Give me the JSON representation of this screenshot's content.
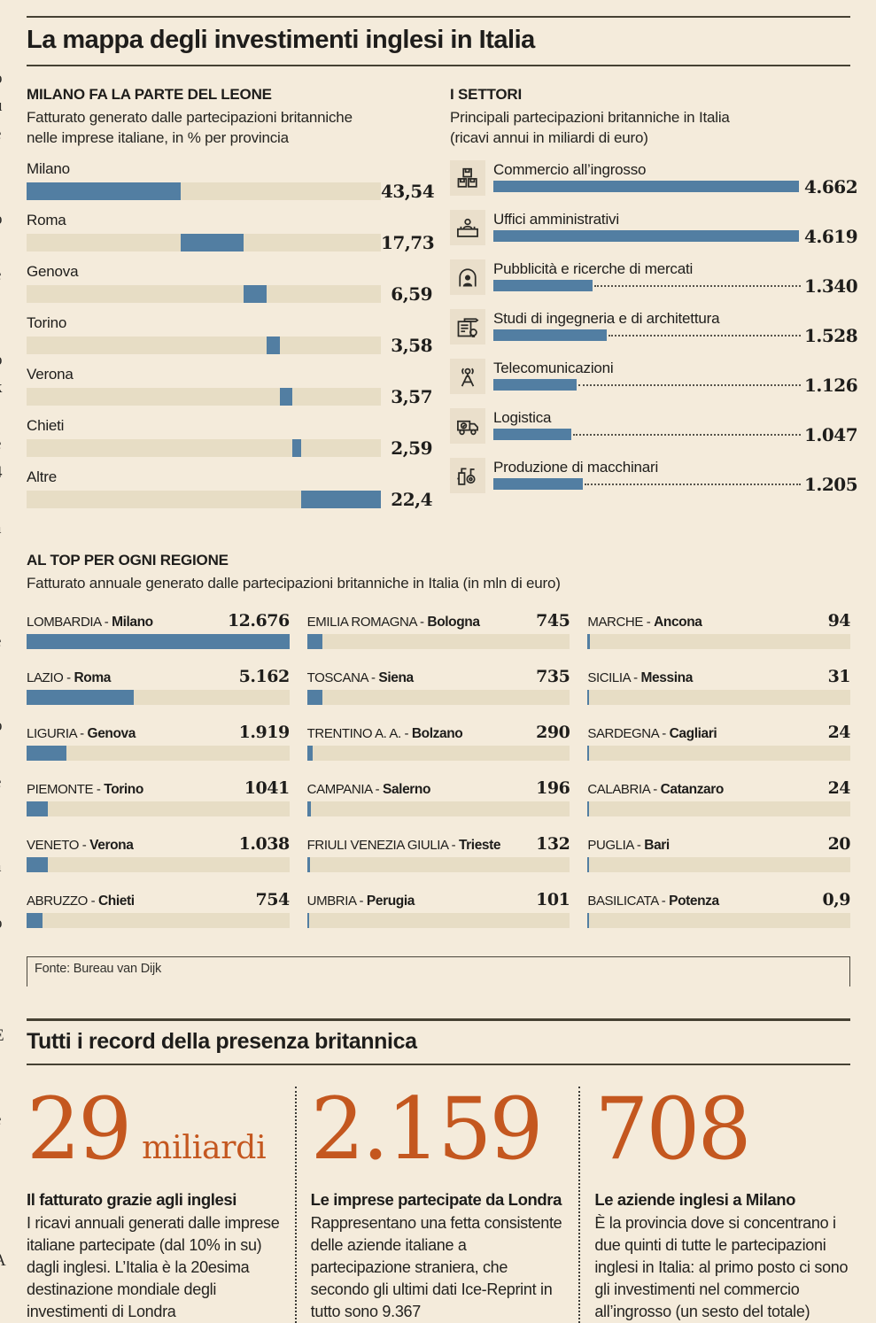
{
  "header": {
    "title": "La mappa degli investimenti inglesi in Italia"
  },
  "colors": {
    "background": "#f4ebdb",
    "bar_blue": "#527ea2",
    "bar_track": "#e7ddc5",
    "accent_orange": "#c4571f",
    "rule_dark": "#464133"
  },
  "margin_fragments": [
    "i",
    "-",
    "o",
    "u",
    "e",
    "-",
    "-",
    "o",
    "-",
    "e",
    ",",
    "i",
    "o",
    "k",
    "-",
    "e",
    "4",
    "-",
    "a",
    "-",
    "r",
    "i",
    "e",
    "-",
    "i",
    "o",
    "-",
    "e",
    "r",
    "-",
    "a",
    "-",
    "o",
    "-",
    "r",
    "-",
    "E",
    "-",
    "-",
    "e",
    "-",
    "-",
    "l",
    "-",
    "A"
  ],
  "province_chart": {
    "heading": "MILANO FA LA PARTE DEL LEONE",
    "subtitle1": "Fatturato generato dalle partecipazioni britanniche",
    "subtitle2": "nelle imprese italiane, in % per provincia",
    "rows": [
      {
        "label": "Milano",
        "display": "43,54",
        "start_pct": 0,
        "width_pct": 43.54
      },
      {
        "label": "Roma",
        "display": "17,73",
        "start_pct": 43.54,
        "width_pct": 17.73
      },
      {
        "label": "Genova",
        "display": "6,59",
        "start_pct": 61.27,
        "width_pct": 6.59
      },
      {
        "label": "Torino",
        "display": "3,58",
        "start_pct": 67.86,
        "width_pct": 3.58
      },
      {
        "label": "Verona",
        "display": "3,57",
        "start_pct": 71.44,
        "width_pct": 3.57
      },
      {
        "label": "Chieti",
        "display": "2,59",
        "start_pct": 75.01,
        "width_pct": 2.59
      },
      {
        "label": "Altre",
        "display": "22,4",
        "start_pct": 77.6,
        "width_pct": 22.4
      }
    ]
  },
  "sectors": {
    "heading": "I SETTORI",
    "subtitle1": "Principali partecipazioni britanniche in Italia",
    "subtitle2": "(ricavi annui in miliardi di euro)",
    "rows": [
      {
        "icon": "boxes-icon",
        "label": "Commercio all’ingrosso",
        "display": "4.662",
        "bar_pct": 97.0
      },
      {
        "icon": "desk-icon",
        "label": "Uffici amministrativi",
        "display": "4.619",
        "bar_pct": 96.1
      },
      {
        "icon": "person-arch-icon",
        "label": "Pubblicità e ricerche di mercati",
        "display": "1.340",
        "bar_pct": 27.9
      },
      {
        "icon": "blueprint-icon",
        "label": "Studi di ingegneria e di architettura",
        "display": "1.528",
        "bar_pct": 31.8
      },
      {
        "icon": "antenna-icon",
        "label": "Telecomunicazioni",
        "display": "1.126",
        "bar_pct": 23.4
      },
      {
        "icon": "truck-icon",
        "label": "Logistica",
        "display": "1.047",
        "bar_pct": 21.8
      },
      {
        "icon": "machinery-icon",
        "label": "Produzione di macchinari",
        "display": "1.205",
        "bar_pct": 25.1
      }
    ]
  },
  "regions": {
    "heading": "AL TOP PER OGNI REGIONE",
    "subtitle": "Fatturato annuale generato dalle partecipazioni britanniche in Italia (in mln di euro)",
    "source": "Fonte: Bureau van Dijk",
    "columns": [
      [
        {
          "region": "LOMBARDIA",
          "city": "Milano",
          "display": "12.676",
          "bar_pct": 100
        },
        {
          "region": "LAZIO",
          "city": "Roma",
          "display": "5.162",
          "bar_pct": 40.7
        },
        {
          "region": "LIGURIA",
          "city": "Genova",
          "display": "1.919",
          "bar_pct": 15.1
        },
        {
          "region": "PIEMONTE",
          "city": "Torino",
          "display": "1041",
          "bar_pct": 8.2
        },
        {
          "region": "VENETO",
          "city": "Verona",
          "display": "1.038",
          "bar_pct": 8.2
        },
        {
          "region": "ABRUZZO",
          "city": "Chieti",
          "display": "754",
          "bar_pct": 5.9
        }
      ],
      [
        {
          "region": "EMILIA ROMAGNA",
          "city": "Bologna",
          "display": "745",
          "bar_pct": 5.9
        },
        {
          "region": "TOSCANA",
          "city": "Siena",
          "display": "735",
          "bar_pct": 5.8
        },
        {
          "region": "TRENTINO A. A.",
          "city": "Bolzano",
          "display": "290",
          "bar_pct": 2.3
        },
        {
          "region": "CAMPANIA",
          "city": "Salerno",
          "display": "196",
          "bar_pct": 1.5
        },
        {
          "region": "FRIULI VENEZIA GIULIA",
          "city": "Trieste",
          "display": "132",
          "bar_pct": 1.0
        },
        {
          "region": "UMBRIA",
          "city": "Perugia",
          "display": "101",
          "bar_pct": 0.8
        }
      ],
      [
        {
          "region": "MARCHE",
          "city": "Ancona",
          "display": "94",
          "bar_pct": 0.8
        },
        {
          "region": "SICILIA",
          "city": "Messina",
          "display": "31",
          "bar_pct": 0.5
        },
        {
          "region": "SARDEGNA",
          "city": "Cagliari",
          "display": "24",
          "bar_pct": 0.4
        },
        {
          "region": "CALABRIA",
          "city": "Catanzaro",
          "display": "24",
          "bar_pct": 0.4
        },
        {
          "region": "PUGLIA",
          "city": "Bari",
          "display": "20",
          "bar_pct": 0.4
        },
        {
          "region": "BASILICATA",
          "city": "Potenza",
          "display": "0,9",
          "bar_pct": 0.3
        }
      ]
    ]
  },
  "records": {
    "heading": "Tutti i record della presenza britannica",
    "items": [
      {
        "number": "29",
        "suffix": "miliardi",
        "title": "Il fatturato grazie agli inglesi",
        "body": "I ricavi annuali generati dalle imprese italiane partecipate (dal 10% in su) dagli inglesi. L’Italia è la 20esima destinazione mondiale degli investimenti di Londra"
      },
      {
        "number": "2.159",
        "suffix": "",
        "title": "Le imprese partecipate da Londra",
        "body": "Rappresentano una fetta consistente delle aziende italiane a partecipazione straniera, che secondo gli ultimi dati Ice-Reprint in tutto sono 9.367"
      },
      {
        "number": "708",
        "suffix": "",
        "title": "Le aziende inglesi a Milano",
        "body": "È la provincia dove si concentrano i due quinti di tutte le partecipazioni inglesi in Italia: al primo posto ci sono gli investimenti nel commercio all’ingrosso (un sesto del totale)"
      }
    ]
  },
  "chart_data": [
    {
      "type": "bar",
      "variant": "waterfall",
      "title": "MILANO FA LA PARTE DEL LEONE",
      "subtitle": "Fatturato generato dalle partecipazioni britanniche nelle imprese italiane, in % per provincia",
      "categories": [
        "Milano",
        "Roma",
        "Genova",
        "Torino",
        "Verona",
        "Chieti",
        "Altre"
      ],
      "values": [
        43.54,
        17.73,
        6.59,
        3.58,
        3.57,
        2.59,
        22.4
      ],
      "unit": "%",
      "xlim": [
        0,
        100
      ],
      "notes": "segments placed cumulatively along a full-width beige track"
    },
    {
      "type": "bar",
      "title": "I SETTORI",
      "subtitle": "Principali partecipazioni britanniche in Italia (ricavi annui in miliardi di euro)",
      "categories": [
        "Commercio all’ingrosso",
        "Uffici amministrativi",
        "Pubblicità e ricerche di mercati",
        "Studi di ingegneria e di architettura",
        "Telecomunicazioni",
        "Logistica",
        "Produzione di macchinari"
      ],
      "values": [
        4662,
        4619,
        1340,
        1528,
        1126,
        1047,
        1205
      ],
      "value_labels": [
        "4.662",
        "4.619",
        "1.340",
        "1.528",
        "1.126",
        "1.047",
        "1.205"
      ],
      "notes": "horizontal bars with dotted leader lines to right-aligned values"
    },
    {
      "type": "bar",
      "title": "AL TOP PER OGNI REGIONE",
      "subtitle": "Fatturato annuale generato dalle partecipazioni britanniche in Italia (in mln di euro)",
      "categories": [
        "LOMBARDIA - Milano",
        "LAZIO - Roma",
        "LIGURIA - Genova",
        "PIEMONTE - Torino",
        "VENETO - Verona",
        "ABRUZZO - Chieti",
        "EMILIA ROMAGNA - Bologna",
        "TOSCANA - Siena",
        "TRENTINO A. A. - Bolzano",
        "CAMPANIA - Salerno",
        "FRIULI VENEZIA GIULIA - Trieste",
        "UMBRIA - Perugia",
        "MARCHE - Ancona",
        "SICILIA - Messina",
        "SARDEGNA - Cagliari",
        "CALABRIA - Catanzaro",
        "PUGLIA - Bari",
        "BASILICATA - Potenza"
      ],
      "values": [
        12676,
        5162,
        1919,
        1041,
        1038,
        754,
        745,
        735,
        290,
        196,
        132,
        101,
        94,
        31,
        24,
        24,
        20,
        0.9
      ],
      "value_labels": [
        "12.676",
        "5.162",
        "1.919",
        "1041",
        "1.038",
        "754",
        "745",
        "735",
        "290",
        "196",
        "132",
        "101",
        "94",
        "31",
        "24",
        "24",
        "20",
        "0,9"
      ],
      "source": "Fonte: Bureau van Dijk",
      "notes": "three-column layout, bars scaled to max 12.676"
    }
  ]
}
